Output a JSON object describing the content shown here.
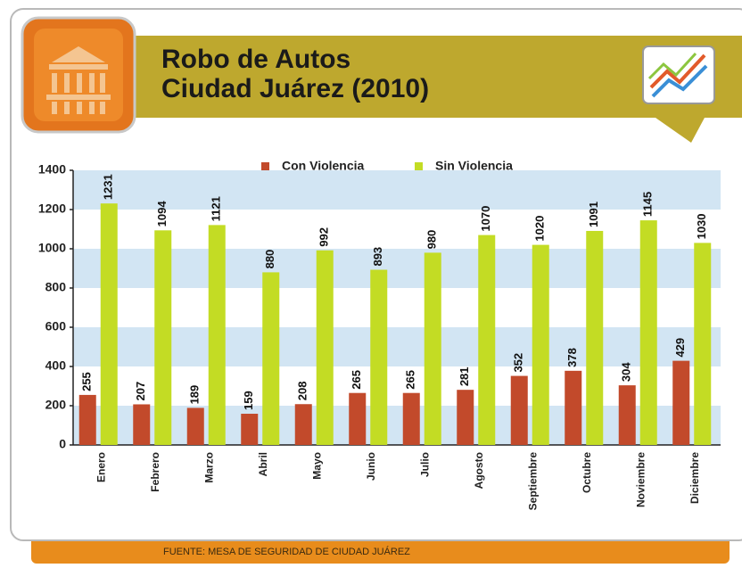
{
  "chart_data": {
    "type": "bar",
    "title": "Robo de Autos",
    "subtitle": "Ciudad Juárez (2010)",
    "source": "FUENTE: MESA DE SEGURIDAD DE CIUDAD JUÁREZ",
    "categories": [
      "Enero",
      "Febrero",
      "Marzo",
      "Abril",
      "Mayo",
      "Junio",
      "Julio",
      "Agosto",
      "Septiembre",
      "Octubre",
      "Noviembre",
      "Diciembre"
    ],
    "series": [
      {
        "name": "Con Violencia",
        "color": "#c24a2b",
        "values": [
          255,
          207,
          189,
          159,
          208,
          265,
          265,
          281,
          352,
          378,
          304,
          429
        ]
      },
      {
        "name": "Sin Violencia",
        "color": "#c3dc24",
        "values": [
          1231,
          1094,
          1121,
          880,
          992,
          893,
          980,
          1070,
          1020,
          1091,
          1145,
          1030
        ]
      }
    ],
    "ylim": [
      0,
      1400
    ],
    "yticks": [
      0,
      200,
      400,
      600,
      800,
      1000,
      1200,
      1400
    ],
    "grid": true,
    "legend": "top"
  }
}
